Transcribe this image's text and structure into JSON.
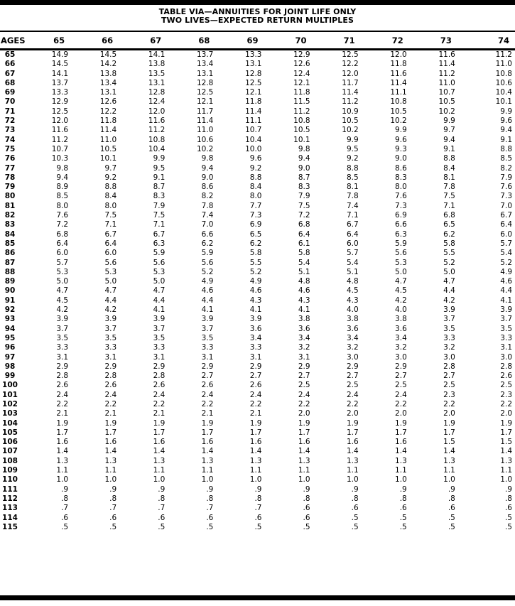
{
  "title": {
    "line1": "TABLE VIA—ANNUITIES FOR JOINT LIFE ONLY",
    "line2": "TWO LIVES—EXPECTED RETURN MULTIPLES"
  },
  "table": {
    "age_header": "AGES",
    "columns": [
      "65",
      "66",
      "67",
      "68",
      "69",
      "70",
      "71",
      "72",
      "73",
      "74"
    ],
    "rows": [
      {
        "age": "65",
        "values": [
          "14.9",
          "14.5",
          "14.1",
          "13.7",
          "13.3",
          "12.9",
          "12.5",
          "12.0",
          "11.6",
          "11.2"
        ]
      },
      {
        "age": "66",
        "values": [
          "14.5",
          "14.2",
          "13.8",
          "13.4",
          "13.1",
          "12.6",
          "12.2",
          "11.8",
          "11.4",
          "11.0"
        ]
      },
      {
        "age": "67",
        "values": [
          "14.1",
          "13.8",
          "13.5",
          "13.1",
          "12.8",
          "12.4",
          "12.0",
          "11.6",
          "11.2",
          "10.8"
        ]
      },
      {
        "age": "68",
        "values": [
          "13.7",
          "13.4",
          "13.1",
          "12.8",
          "12.5",
          "12.1",
          "11.7",
          "11.4",
          "11.0",
          "10.6"
        ]
      },
      {
        "age": "69",
        "values": [
          "13.3",
          "13.1",
          "12.8",
          "12.5",
          "12.1",
          "11.8",
          "11.4",
          "11.1",
          "10.7",
          "10.4"
        ]
      },
      {
        "age": "70",
        "values": [
          "12.9",
          "12.6",
          "12.4",
          "12.1",
          "11.8",
          "11.5",
          "11.2",
          "10.8",
          "10.5",
          "10.1"
        ]
      },
      {
        "age": "71",
        "values": [
          "12.5",
          "12.2",
          "12.0",
          "11.7",
          "11.4",
          "11.2",
          "10.9",
          "10.5",
          "10.2",
          "9.9"
        ]
      },
      {
        "age": "72",
        "values": [
          "12.0",
          "11.8",
          "11.6",
          "11.4",
          "11.1",
          "10.8",
          "10.5",
          "10.2",
          "9.9",
          "9.6"
        ]
      },
      {
        "age": "73",
        "values": [
          "11.6",
          "11.4",
          "11.2",
          "11.0",
          "10.7",
          "10.5",
          "10.2",
          "9.9",
          "9.7",
          "9.4"
        ]
      },
      {
        "age": "74",
        "values": [
          "11.2",
          "11.0",
          "10.8",
          "10.6",
          "10.4",
          "10.1",
          "9.9",
          "9.6",
          "9.4",
          "9.1"
        ]
      },
      {
        "age": "75",
        "values": [
          "10.7",
          "10.5",
          "10.4",
          "10.2",
          "10.0",
          "9.8",
          "9.5",
          "9.3",
          "9.1",
          "8.8"
        ]
      },
      {
        "age": "76",
        "values": [
          "10.3",
          "10.1",
          "9.9",
          "9.8",
          "9.6",
          "9.4",
          "9.2",
          "9.0",
          "8.8",
          "8.5"
        ]
      },
      {
        "age": "77",
        "values": [
          "9.8",
          "9.7",
          "9.5",
          "9.4",
          "9.2",
          "9.0",
          "8.8",
          "8.6",
          "8.4",
          "8.2"
        ]
      },
      {
        "age": "78",
        "values": [
          "9.4",
          "9.2",
          "9.1",
          "9.0",
          "8.8",
          "8.7",
          "8.5",
          "8.3",
          "8.1",
          "7.9"
        ]
      },
      {
        "age": "79",
        "values": [
          "8.9",
          "8.8",
          "8.7",
          "8.6",
          "8.4",
          "8.3",
          "8.1",
          "8.0",
          "7.8",
          "7.6"
        ]
      },
      {
        "age": "80",
        "values": [
          "8.5",
          "8.4",
          "8.3",
          "8.2",
          "8.0",
          "7.9",
          "7.8",
          "7.6",
          "7.5",
          "7.3"
        ]
      },
      {
        "age": "81",
        "values": [
          "8.0",
          "8.0",
          "7.9",
          "7.8",
          "7.7",
          "7.5",
          "7.4",
          "7.3",
          "7.1",
          "7.0"
        ]
      },
      {
        "age": "82",
        "values": [
          "7.6",
          "7.5",
          "7.5",
          "7.4",
          "7.3",
          "7.2",
          "7.1",
          "6.9",
          "6.8",
          "6.7"
        ]
      },
      {
        "age": "83",
        "values": [
          "7.2",
          "7.1",
          "7.1",
          "7.0",
          "6.9",
          "6.8",
          "6.7",
          "6.6",
          "6.5",
          "6.4"
        ]
      },
      {
        "age": "84",
        "values": [
          "6.8",
          "6.7",
          "6.7",
          "6.6",
          "6.5",
          "6.4",
          "6.4",
          "6.3",
          "6.2",
          "6.0"
        ]
      },
      {
        "age": "85",
        "values": [
          "6.4",
          "6.4",
          "6.3",
          "6.2",
          "6.2",
          "6.1",
          "6.0",
          "5.9",
          "5.8",
          "5.7"
        ]
      },
      {
        "age": "86",
        "values": [
          "6.0",
          "6.0",
          "5.9",
          "5.9",
          "5.8",
          "5.8",
          "5.7",
          "5.6",
          "5.5",
          "5.4"
        ]
      },
      {
        "age": "87",
        "values": [
          "5.7",
          "5.6",
          "5.6",
          "5.6",
          "5.5",
          "5.4",
          "5.4",
          "5.3",
          "5.2",
          "5.2"
        ]
      },
      {
        "age": "88",
        "values": [
          "5.3",
          "5.3",
          "5.3",
          "5.2",
          "5.2",
          "5.1",
          "5.1",
          "5.0",
          "5.0",
          "4.9"
        ]
      },
      {
        "age": "89",
        "values": [
          "5.0",
          "5.0",
          "5.0",
          "4.9",
          "4.9",
          "4.8",
          "4.8",
          "4.7",
          "4.7",
          "4.6"
        ]
      },
      {
        "age": "90",
        "values": [
          "4.7",
          "4.7",
          "4.7",
          "4.6",
          "4.6",
          "4.6",
          "4.5",
          "4.5",
          "4.4",
          "4.4"
        ]
      },
      {
        "age": "91",
        "values": [
          "4.5",
          "4.4",
          "4.4",
          "4.4",
          "4.3",
          "4.3",
          "4.3",
          "4.2",
          "4.2",
          "4.1"
        ]
      },
      {
        "age": "92",
        "values": [
          "4.2",
          "4.2",
          "4.1",
          "4.1",
          "4.1",
          "4.1",
          "4.0",
          "4.0",
          "3.9",
          "3.9"
        ]
      },
      {
        "age": "93",
        "values": [
          "3.9",
          "3.9",
          "3.9",
          "3.9",
          "3.9",
          "3.8",
          "3.8",
          "3.8",
          "3.7",
          "3.7"
        ]
      },
      {
        "age": "94",
        "values": [
          "3.7",
          "3.7",
          "3.7",
          "3.7",
          "3.6",
          "3.6",
          "3.6",
          "3.6",
          "3.5",
          "3.5"
        ]
      },
      {
        "age": "95",
        "values": [
          "3.5",
          "3.5",
          "3.5",
          "3.5",
          "3.4",
          "3.4",
          "3.4",
          "3.4",
          "3.3",
          "3.3"
        ]
      },
      {
        "age": "96",
        "values": [
          "3.3",
          "3.3",
          "3.3",
          "3.3",
          "3.3",
          "3.2",
          "3.2",
          "3.2",
          "3.2",
          "3.1"
        ]
      },
      {
        "age": "97",
        "values": [
          "3.1",
          "3.1",
          "3.1",
          "3.1",
          "3.1",
          "3.1",
          "3.0",
          "3.0",
          "3.0",
          "3.0"
        ]
      },
      {
        "age": "98",
        "values": [
          "2.9",
          "2.9",
          "2.9",
          "2.9",
          "2.9",
          "2.9",
          "2.9",
          "2.9",
          "2.8",
          "2.8"
        ]
      },
      {
        "age": "99",
        "values": [
          "2.8",
          "2.8",
          "2.8",
          "2.7",
          "2.7",
          "2.7",
          "2.7",
          "2.7",
          "2.7",
          "2.6"
        ]
      },
      {
        "age": "100",
        "values": [
          "2.6",
          "2.6",
          "2.6",
          "2.6",
          "2.6",
          "2.5",
          "2.5",
          "2.5",
          "2.5",
          "2.5"
        ]
      },
      {
        "age": "101",
        "values": [
          "2.4",
          "2.4",
          "2.4",
          "2.4",
          "2.4",
          "2.4",
          "2.4",
          "2.4",
          "2.3",
          "2.3"
        ]
      },
      {
        "age": "102",
        "values": [
          "2.2",
          "2.2",
          "2.2",
          "2.2",
          "2.2",
          "2.2",
          "2.2",
          "2.2",
          "2.2",
          "2.2"
        ]
      },
      {
        "age": "103",
        "values": [
          "2.1",
          "2.1",
          "2.1",
          "2.1",
          "2.1",
          "2.0",
          "2.0",
          "2.0",
          "2.0",
          "2.0"
        ]
      },
      {
        "age": "104",
        "values": [
          "1.9",
          "1.9",
          "1.9",
          "1.9",
          "1.9",
          "1.9",
          "1.9",
          "1.9",
          "1.9",
          "1.9"
        ]
      },
      {
        "age": "105",
        "values": [
          "1.7",
          "1.7",
          "1.7",
          "1.7",
          "1.7",
          "1.7",
          "1.7",
          "1.7",
          "1.7",
          "1.7"
        ]
      },
      {
        "age": "106",
        "values": [
          "1.6",
          "1.6",
          "1.6",
          "1.6",
          "1.6",
          "1.6",
          "1.6",
          "1.6",
          "1.5",
          "1.5"
        ]
      },
      {
        "age": "107",
        "values": [
          "1.4",
          "1.4",
          "1.4",
          "1.4",
          "1.4",
          "1.4",
          "1.4",
          "1.4",
          "1.4",
          "1.4"
        ]
      },
      {
        "age": "108",
        "values": [
          "1.3",
          "1.3",
          "1.3",
          "1.3",
          "1.3",
          "1.3",
          "1.3",
          "1.3",
          "1.3",
          "1.3"
        ]
      },
      {
        "age": "109",
        "values": [
          "1.1",
          "1.1",
          "1.1",
          "1.1",
          "1.1",
          "1.1",
          "1.1",
          "1.1",
          "1.1",
          "1.1"
        ]
      },
      {
        "age": "110",
        "values": [
          "1.0",
          "1.0",
          "1.0",
          "1.0",
          "1.0",
          "1.0",
          "1.0",
          "1.0",
          "1.0",
          "1.0"
        ]
      },
      {
        "age": "111",
        "values": [
          ".9",
          ".9",
          ".9",
          ".9",
          ".9",
          ".9",
          ".9",
          ".9",
          ".9",
          ".9"
        ]
      },
      {
        "age": "112",
        "values": [
          ".8",
          ".8",
          ".8",
          ".8",
          ".8",
          ".8",
          ".8",
          ".8",
          ".8",
          ".8"
        ]
      },
      {
        "age": "113",
        "values": [
          ".7",
          ".7",
          ".7",
          ".7",
          ".7",
          ".6",
          ".6",
          ".6",
          ".6",
          ".6"
        ]
      },
      {
        "age": "114",
        "values": [
          ".6",
          ".6",
          ".6",
          ".6",
          ".6",
          ".6",
          ".5",
          ".5",
          ".5",
          ".5"
        ]
      },
      {
        "age": "115",
        "values": [
          ".5",
          ".5",
          ".5",
          ".5",
          ".5",
          ".5",
          ".5",
          ".5",
          ".5",
          ".5"
        ]
      }
    ]
  },
  "colors": {
    "ink": "#000000",
    "paper": "#ffffff"
  }
}
